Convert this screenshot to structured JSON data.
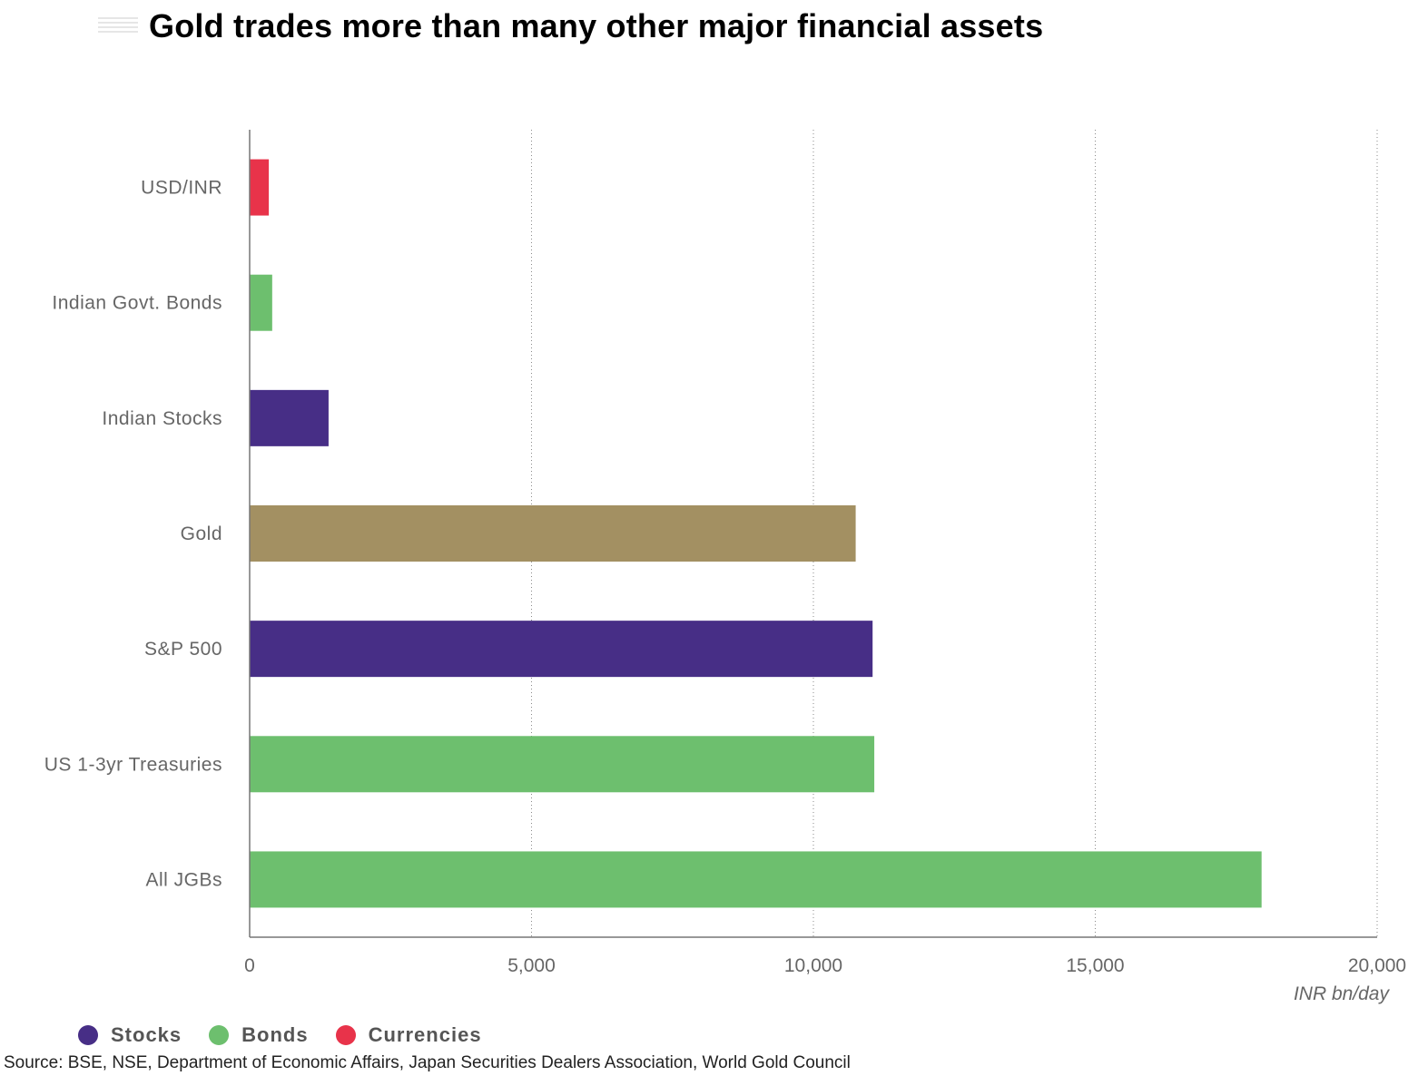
{
  "title": "Gold trades more than many other major financial assets",
  "unit_label": "INR bn/day",
  "source": "Source: BSE, NSE, Department of Economic Affairs, Japan Securities Dealers Association, World Gold Council",
  "legend": [
    {
      "label": "Stocks",
      "color": "#472e86"
    },
    {
      "label": "Bonds",
      "color": "#6dbf6e"
    },
    {
      "label": "Currencies",
      "color": "#e8334a"
    }
  ],
  "chart_data": {
    "type": "bar",
    "orientation": "horizontal",
    "title": "Gold trades more than many other major financial assets",
    "xlabel": "INR bn/day",
    "xlim": [
      0,
      20000
    ],
    "x_ticks": [
      0,
      5000,
      10000,
      15000,
      20000
    ],
    "x_tick_labels": [
      "0",
      "5,000",
      "10,000",
      "15,000",
      "20,000"
    ],
    "grid": "vertical dotted",
    "legend_position": "bottom-left",
    "categories": [
      "USD/INR",
      "Indian Govt. Bonds",
      "Indian Stocks",
      "Gold",
      "S&P 500",
      "US 1-3yr Treasuries",
      "All JGBs"
    ],
    "values": [
      340,
      400,
      1400,
      10750,
      11050,
      11080,
      17950
    ],
    "groups": [
      "Currencies",
      "Bonds",
      "Stocks",
      "Gold",
      "Stocks",
      "Bonds",
      "Bonds"
    ],
    "colors": [
      "#e8334a",
      "#6dbf6e",
      "#472e86",
      "#a39062",
      "#472e86",
      "#6dbf6e",
      "#6dbf6e"
    ]
  }
}
